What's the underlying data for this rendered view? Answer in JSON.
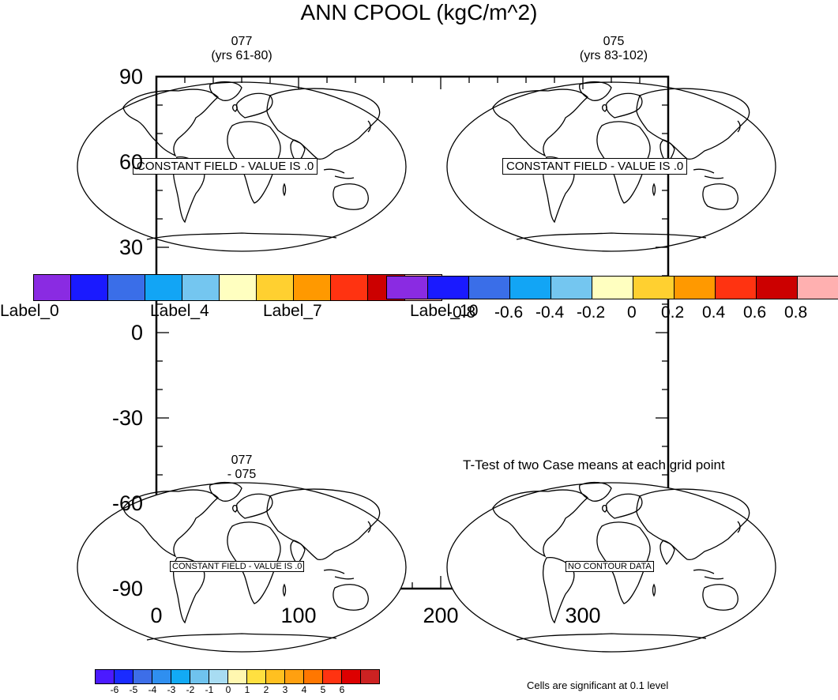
{
  "title": "ANN CPOOL (kgC/m^2)",
  "panels": {
    "top_left": {
      "case": "077",
      "years": "(yrs 61-80)",
      "message": "CONSTANT FIELD - VALUE IS .0"
    },
    "top_right": {
      "case": "075",
      "years": "(yrs 83-102)",
      "message": "CONSTANT FIELD - VALUE IS .0"
    },
    "bottom_left": {
      "line1": "077",
      "line2": "- 075",
      "message": "CONSTANT FIELD - VALUE IS .0"
    },
    "bottom_right": {
      "title": "T-Test of two Case means at each grid point",
      "message": "NO CONTOUR DATA"
    }
  },
  "axes": {
    "y_ticks": [
      "90",
      "60",
      "30",
      "0",
      "-30",
      "-60",
      "-90"
    ],
    "x_ticks": [
      "0",
      "100",
      "200",
      "300"
    ]
  },
  "colorbar_left": {
    "colors": [
      "#8a2be2",
      "#1a1aff",
      "#3a6ee8",
      "#12a5f5",
      "#74c6f0",
      "#ffffc0",
      "#ffd030",
      "#ff9900",
      "#ff3311",
      "#cc0000",
      "#ffb0b0"
    ],
    "labels": [
      "Label_0",
      "Label_4",
      "Label_7",
      "Label_10"
    ]
  },
  "colorbar_right": {
    "colors": [
      "#8a2be2",
      "#1a1aff",
      "#3a6ee8",
      "#12a5f5",
      "#74c6f0",
      "#ffffc0",
      "#ffd030",
      "#ff9900",
      "#ff3311",
      "#cc0000",
      "#ffb0b0"
    ],
    "labels": [
      "-0.8",
      "-0.6",
      "-0.4",
      "-0.2",
      "0",
      "0.2",
      "0.4",
      "0.6",
      "0.8"
    ]
  },
  "colorbar_bottom": {
    "colors": [
      "#4b1aff",
      "#1a2bff",
      "#3d6ee8",
      "#2f8ff0",
      "#12aaf5",
      "#6fc3ee",
      "#a8dcf2",
      "#fff7b0",
      "#ffe040",
      "#ffc020",
      "#ffa010",
      "#ff7700",
      "#ff3311",
      "#dd0000",
      "#cc2222"
    ],
    "labels": [
      "-6",
      "-5",
      "-4",
      "-3",
      "-2",
      "-1",
      "0",
      "1",
      "2",
      "3",
      "4",
      "5",
      "6"
    ]
  },
  "footnote": "Cells are significant at 0.1 level"
}
